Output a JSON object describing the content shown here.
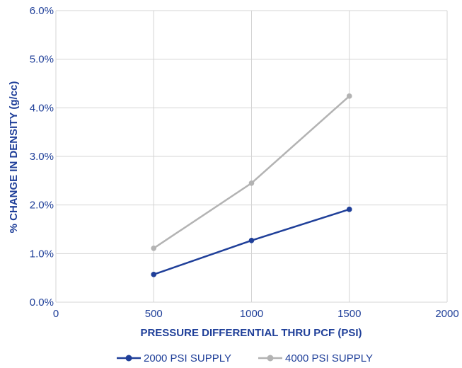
{
  "chart_data": {
    "type": "line",
    "xlabel": "PRESSURE DIFFERENTIAL THRU PCF (PSI)",
    "ylabel": "% CHANGE IN DENSITY (g/cc)",
    "xlim": [
      0,
      2000
    ],
    "ylim": [
      0,
      6
    ],
    "xticks": [
      0,
      500,
      1000,
      1500,
      2000
    ],
    "yticks": [
      0,
      1,
      2,
      3,
      4,
      5,
      6
    ],
    "xtick_labels": [
      "0",
      "500",
      "1000",
      "1500",
      "2000"
    ],
    "ytick_labels": [
      "0.0%",
      "1.0%",
      "2.0%",
      "3.0%",
      "4.0%",
      "5.0%",
      "6.0%"
    ],
    "grid": true,
    "legend_position": "bottom",
    "x": [
      500,
      1000,
      1500
    ],
    "series": [
      {
        "name": "2000 PSI SUPPLY",
        "values": [
          0.57,
          1.27,
          1.91
        ],
        "color": "#1f3f99"
      },
      {
        "name": "4000 PSI SUPPLY",
        "values": [
          1.11,
          2.45,
          4.24
        ],
        "color": "#b3b3b3"
      }
    ],
    "axis_text_color": "#1f3f99"
  }
}
